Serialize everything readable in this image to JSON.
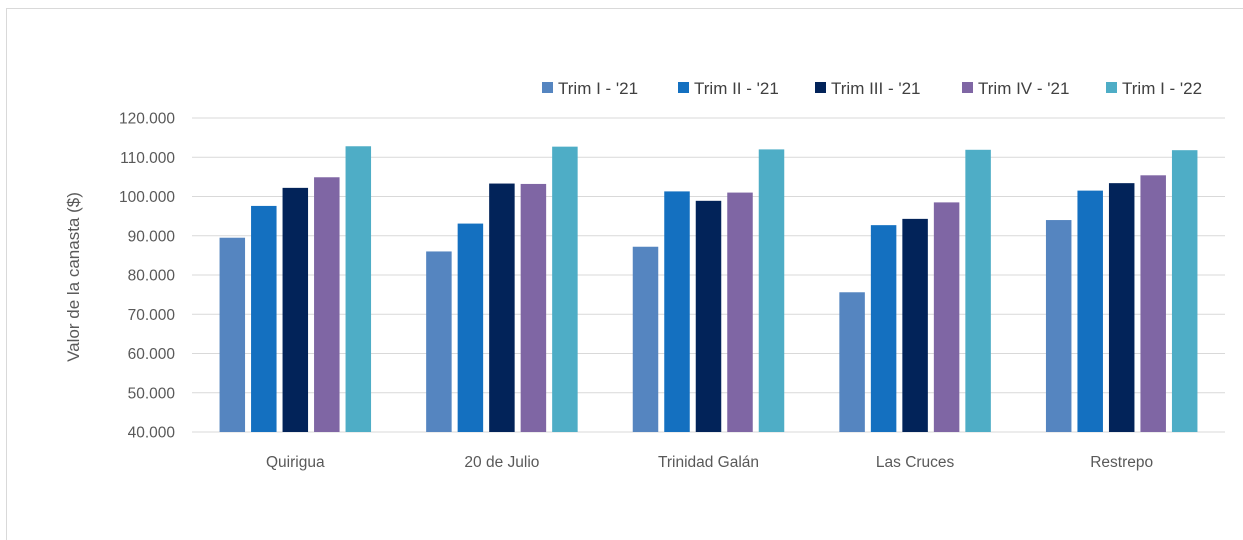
{
  "chart_data": {
    "type": "bar",
    "title": "",
    "xlabel": "",
    "ylabel": "Valor de la  canasta ($)",
    "ylim": [
      40000,
      120000
    ],
    "ytick_step": 10000,
    "ytick_labels": [
      "40.000",
      "50.000",
      "60.000",
      "70.000",
      "80.000",
      "90.000",
      "100.000",
      "110.000",
      "120.000"
    ],
    "grid": true,
    "legend_position": "top-right",
    "categories": [
      "Quirigua",
      "20 de Julio",
      "Trinidad Galán",
      "Las Cruces",
      "Restrepo"
    ],
    "series": [
      {
        "name": "Trim I - '21",
        "color": "#5585c0",
        "values": [
          89500,
          86000,
          87200,
          75600,
          94000
        ]
      },
      {
        "name": "Trim II - '21",
        "color": "#1470c0",
        "values": [
          97600,
          93100,
          101300,
          92700,
          101500
        ]
      },
      {
        "name": "Trim III - '21",
        "color": "#022359",
        "values": [
          102200,
          103300,
          98900,
          94300,
          103400
        ]
      },
      {
        "name": "Trim IV - '21",
        "color": "#7f66a4",
        "values": [
          104900,
          103200,
          101000,
          98500,
          105400
        ]
      },
      {
        "name": "Trim I - '22",
        "color": "#4eadc6",
        "values": [
          112800,
          112700,
          112000,
          111900,
          111800
        ]
      }
    ]
  }
}
